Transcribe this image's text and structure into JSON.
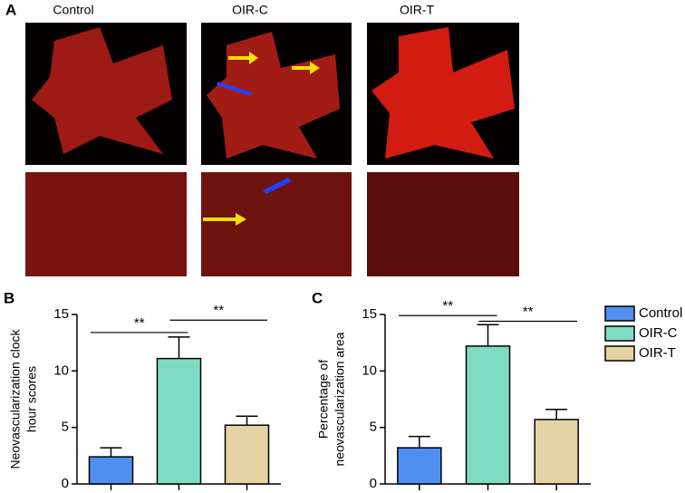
{
  "panel_a": {
    "label": "A",
    "columns": [
      "Control",
      "OIR-C",
      "OIR-T"
    ]
  },
  "legend": [
    {
      "name": "Control",
      "color": "#4f8ff0"
    },
    {
      "name": "OIR-C",
      "color": "#7fdcc2"
    },
    {
      "name": "OIR-T",
      "color": "#e6d3a3"
    }
  ],
  "chart_data": [
    {
      "type": "bar",
      "panel_label": "B",
      "ylabel": [
        "Neovascularization clock",
        "hour scores"
      ],
      "categories": [
        null,
        null,
        null
      ],
      "values": [
        2.4,
        11.1,
        5.2
      ],
      "errors": [
        0.8,
        1.9,
        0.8
      ],
      "ylim": [
        0,
        15
      ],
      "yticks": [
        0,
        5,
        10,
        15
      ],
      "annotations": [
        {
          "text": "**",
          "from": 0,
          "to": 1,
          "y": 13.4
        },
        {
          "text": "**",
          "from": 1,
          "to": 2,
          "y": 14.5
        }
      ]
    },
    {
      "type": "bar",
      "panel_label": "C",
      "ylabel": [
        "Percentage of",
        "neovascularization area"
      ],
      "categories": [
        null,
        null,
        null
      ],
      "values": [
        3.2,
        12.2,
        5.7
      ],
      "errors": [
        1.0,
        1.9,
        0.9
      ],
      "ylim": [
        0,
        15
      ],
      "yticks": [
        0,
        5,
        10,
        15
      ],
      "annotations": [
        {
          "text": "**",
          "from": 0,
          "to": 1,
          "y": 14.9
        },
        {
          "text": "**",
          "from": 1,
          "to": 2,
          "y": 14.4
        }
      ]
    }
  ]
}
